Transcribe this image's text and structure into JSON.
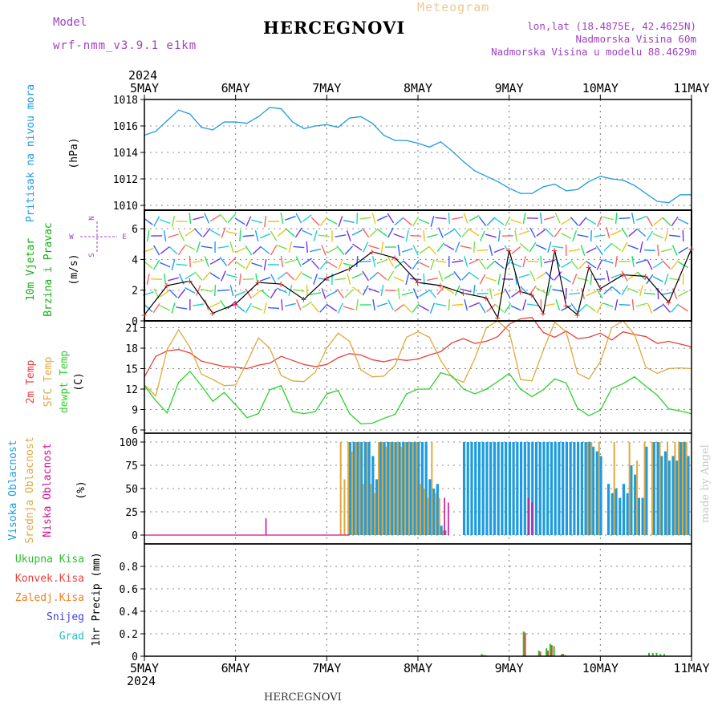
{
  "header": {
    "model_label": "Model",
    "model_name": "wrf-nmm_v3.9.1 e1km",
    "title": "HERCEGNOVI",
    "meteogram_label": "Meteogram",
    "lonlat": "lon,lat (18.4875E, 42.4625N)",
    "altitude": "Nadmorska Visina 60m",
    "model_altitude": "Nadmorska Visina u modelu 88.4629m"
  },
  "footer": {
    "station": "HERCEGNOVI",
    "credit": "made by Angel"
  },
  "colors": {
    "pressure": "#1e9be0",
    "temp2m": "#e8403c",
    "sfc": "#e0a83c",
    "dewpt": "#2bd12b",
    "high_cloud": "#1e9be0",
    "mid_cloud": "#e0a83c",
    "low_cloud": "#d01090",
    "total_precip": "#2bbf2b",
    "conv_precip": "#e8403c",
    "frz_precip": "#f08020",
    "snow": "#4040e0",
    "hail": "#20c0c0",
    "wind_label": "#10b010",
    "compass": "#a040c0"
  },
  "chart_data": [
    {
      "type": "line",
      "panel": "pressure",
      "ylabel": [
        "Pritisak na nivou mora",
        "(hPa)"
      ],
      "ylim": [
        1010,
        1018
      ],
      "yticks": [
        "1010",
        "1012",
        "1014",
        "1016",
        "1018"
      ],
      "x_top_year": "2024",
      "x_top_labels": [
        "5MAY",
        "6MAY",
        "7MAY",
        "8MAY",
        "9MAY",
        "10MAY",
        "11MAY"
      ],
      "grid": true,
      "series": [
        {
          "x_hours": [
            0,
            3,
            6,
            9,
            12,
            15,
            18,
            21,
            24,
            27,
            30,
            33,
            36,
            39,
            42,
            45,
            48,
            51,
            54,
            57,
            60,
            63,
            66,
            69,
            72,
            75,
            78,
            81,
            84,
            87,
            90,
            93,
            96,
            99,
            102,
            105,
            108,
            111,
            114,
            117,
            120,
            123,
            126,
            129,
            132,
            135,
            138,
            141,
            144
          ],
          "values": [
            1015.3,
            1015.6,
            1016.4,
            1017.2,
            1016.9,
            1015.9,
            1015.7,
            1016.3,
            1016.3,
            1016.2,
            1016.7,
            1017.4,
            1017.3,
            1016.3,
            1015.8,
            1016.0,
            1016.1,
            1015.9,
            1016.6,
            1016.7,
            1016.2,
            1015.3,
            1014.9,
            1014.9,
            1014.7,
            1014.4,
            1014.8,
            1014.1,
            1013.3,
            1012.6,
            1012.2,
            1011.8,
            1011.3,
            1010.9,
            1010.9,
            1011.4,
            1011.6,
            1011.1,
            1011.2,
            1011.8,
            1012.2,
            1012.0,
            1011.9,
            1011.5,
            1010.9,
            1010.3,
            1010.2,
            1010.8,
            1010.8
          ]
        }
      ]
    },
    {
      "type": "line",
      "panel": "wind",
      "ylabel": [
        "10m Vjetar",
        "Brzina i Pravac",
        "(m/s)"
      ],
      "compass_labels": {
        "n": "N",
        "s": "S",
        "w": "W",
        "e": "E"
      },
      "ylim": [
        0,
        7
      ],
      "yticks": [
        "0",
        "2",
        "4",
        "6"
      ],
      "grid": true,
      "series": [
        {
          "name": "wind speed",
          "x_hours": [
            0,
            6,
            12,
            18,
            24,
            30,
            36,
            42,
            48,
            54,
            60,
            66,
            72,
            78,
            84,
            90,
            93,
            96,
            99,
            102,
            105,
            108,
            111,
            114,
            117,
            120,
            126,
            132,
            138,
            144
          ],
          "values": [
            0.4,
            2.3,
            2.6,
            0.5,
            1.1,
            2.5,
            2.4,
            1.4,
            2.8,
            3.4,
            4.5,
            4.1,
            2.5,
            2.3,
            1.8,
            1.5,
            0.2,
            4.6,
            1.9,
            1.7,
            0.5,
            4.6,
            1.0,
            0.4,
            3.5,
            2.1,
            3.0,
            2.9,
            1.2,
            4.7
          ]
        }
      ]
    },
    {
      "type": "line",
      "panel": "temperature",
      "ylabel": [
        "2m Temp",
        "SFC Temp",
        "dewpt Temp",
        "(C)"
      ],
      "ylim": [
        6,
        22
      ],
      "yticks": [
        "6",
        "9",
        "12",
        "15",
        "18",
        "21"
      ],
      "grid": true,
      "series": [
        {
          "name": "2m Temp",
          "x_hours": [
            0,
            3,
            6,
            9,
            12,
            15,
            18,
            21,
            24,
            27,
            30,
            33,
            36,
            39,
            42,
            45,
            48,
            51,
            54,
            57,
            60,
            63,
            66,
            69,
            72,
            75,
            78,
            81,
            84,
            87,
            90,
            93,
            96,
            99,
            102,
            105,
            108,
            111,
            114,
            117,
            120,
            123,
            126,
            129,
            132,
            135,
            138,
            141,
            144
          ],
          "values": [
            13.8,
            16.8,
            17.6,
            17.8,
            17.3,
            16.1,
            15.7,
            15.3,
            15.2,
            15.0,
            15.5,
            15.8,
            16.8,
            16.2,
            15.6,
            15.3,
            15.6,
            16.6,
            17.2,
            17.0,
            16.3,
            16.0,
            16.4,
            16.2,
            16.4,
            17.0,
            17.5,
            18.8,
            19.4,
            18.7,
            19.0,
            19.7,
            21.5,
            22.3,
            22.5,
            20.3,
            19.6,
            20.5,
            19.4,
            19.6,
            20.2,
            19.2,
            20.4,
            20.0,
            19.7,
            18.7,
            19.0,
            18.6,
            18.2
          ]
        },
        {
          "name": "SFC Temp",
          "x_hours": [
            0,
            3,
            6,
            9,
            12,
            15,
            18,
            21,
            24,
            27,
            30,
            33,
            36,
            39,
            42,
            45,
            48,
            51,
            54,
            57,
            60,
            63,
            66,
            69,
            72,
            75,
            78,
            81,
            84,
            87,
            90,
            93,
            96,
            99,
            102,
            105,
            108,
            111,
            114,
            117,
            120,
            123,
            126,
            129,
            132,
            135,
            138,
            141,
            144
          ],
          "values": [
            12.6,
            11.0,
            17.8,
            20.7,
            18.1,
            14.2,
            13.4,
            12.5,
            12.6,
            15.9,
            19.5,
            18.0,
            14.0,
            13.2,
            13.1,
            14.5,
            18.0,
            20.2,
            19.0,
            14.8,
            13.8,
            13.9,
            15.5,
            19.6,
            20.4,
            19.6,
            16.2,
            13.7,
            13.0,
            16.5,
            21.0,
            22.0,
            20.5,
            13.4,
            13.2,
            17.7,
            21.8,
            20.4,
            14.3,
            13.5,
            16.0,
            21.0,
            22.0,
            20.0,
            15.2,
            14.3,
            15.0,
            15.1,
            15.0
          ]
        },
        {
          "name": "dewpt Temp",
          "x_hours": [
            0,
            3,
            6,
            9,
            12,
            15,
            18,
            21,
            24,
            27,
            30,
            33,
            36,
            39,
            42,
            45,
            48,
            51,
            54,
            57,
            60,
            63,
            66,
            69,
            72,
            75,
            78,
            81,
            84,
            87,
            90,
            93,
            96,
            99,
            102,
            105,
            108,
            111,
            114,
            117,
            120,
            123,
            126,
            129,
            132,
            135,
            138,
            141,
            144
          ],
          "values": [
            12.5,
            10.3,
            8.5,
            13.0,
            14.6,
            12.5,
            10.2,
            11.5,
            9.7,
            7.8,
            8.4,
            11.9,
            12.5,
            8.7,
            8.4,
            8.7,
            11.3,
            11.8,
            8.4,
            6.9,
            7.0,
            7.7,
            8.3,
            11.3,
            12.0,
            12.0,
            14.4,
            13.9,
            12.0,
            11.3,
            12.0,
            13.1,
            14.3,
            12.0,
            10.9,
            11.9,
            13.5,
            12.9,
            9.2,
            8.1,
            8.9,
            12.1,
            12.8,
            13.8,
            12.4,
            11.1,
            9.1,
            8.8,
            8.4
          ]
        }
      ]
    },
    {
      "type": "bar",
      "panel": "cloud",
      "ylabel": [
        "Visoka Oblacnost",
        "Srednja Oblacnost",
        "Niska Oblacnost",
        "(%)"
      ],
      "ylim": [
        0,
        100
      ],
      "yticks": [
        "0",
        "25",
        "50",
        "75",
        "100"
      ],
      "grid": true,
      "series": [
        {
          "name": "Visoka Oblacnost",
          "x_hours": [
            51,
            52,
            53,
            54,
            55,
            56,
            57,
            58,
            59,
            60,
            61,
            62,
            63,
            64,
            65,
            66,
            67,
            68,
            69,
            70,
            71,
            72,
            73,
            74,
            75,
            76,
            77,
            78,
            79,
            80,
            84,
            85,
            86,
            87,
            88,
            89,
            90,
            91,
            92,
            93,
            94,
            95,
            96,
            97,
            98,
            99,
            100,
            101,
            102,
            103,
            104,
            105,
            106,
            107,
            108,
            109,
            110,
            111,
            112,
            113,
            114,
            115,
            116,
            117,
            118,
            119,
            120,
            121,
            122,
            123,
            124,
            125,
            126,
            127,
            128,
            129,
            130,
            131,
            132,
            133,
            134,
            135,
            136,
            137,
            138,
            139,
            140,
            141,
            142,
            143
          ],
          "values": [
            0,
            0,
            0,
            100,
            100,
            100,
            100,
            100,
            100,
            85,
            60,
            100,
            100,
            100,
            100,
            100,
            100,
            100,
            100,
            100,
            100,
            100,
            100,
            100,
            60,
            50,
            55,
            10,
            5,
            0,
            100,
            100,
            100,
            100,
            100,
            100,
            100,
            100,
            100,
            100,
            100,
            100,
            100,
            100,
            100,
            100,
            100,
            100,
            100,
            100,
            100,
            100,
            100,
            100,
            100,
            100,
            100,
            100,
            100,
            100,
            100,
            100,
            100,
            100,
            95,
            90,
            85,
            0,
            55,
            45,
            50,
            40,
            55,
            45,
            75,
            65,
            40,
            40,
            95,
            0,
            100,
            100,
            85,
            90,
            80,
            85,
            80,
            100,
            100,
            85
          ]
        },
        {
          "name": "Srednja Oblacnost",
          "x_hours": [
            52,
            53,
            54,
            55,
            56,
            57,
            58,
            59,
            60,
            61,
            62,
            63,
            64,
            65,
            66,
            67,
            68,
            69,
            70,
            71,
            72,
            73,
            74,
            75,
            76,
            77,
            78,
            79,
            117,
            118,
            120,
            124,
            128,
            130,
            132,
            134,
            136,
            138,
            140,
            141,
            142,
            143
          ],
          "values": [
            100,
            60,
            100,
            90,
            100,
            100,
            55,
            100,
            55,
            45,
            100,
            100,
            95,
            100,
            100,
            100,
            95,
            100,
            100,
            100,
            100,
            55,
            50,
            40,
            100,
            45,
            40,
            5,
            100,
            100,
            100,
            100,
            100,
            80,
            100,
            100,
            100,
            100,
            100,
            100,
            100,
            100
          ]
        },
        {
          "name": "Niska Oblacnost",
          "x_hours": [
            32,
            79,
            80,
            101,
            102
          ],
          "values": [
            18,
            40,
            35,
            40,
            35
          ]
        }
      ]
    },
    {
      "type": "bar",
      "panel": "precip",
      "ylabel": [
        "1hr Precip (mm)"
      ],
      "ylim": [
        0,
        1.0
      ],
      "yticks": [
        "0",
        "0.2",
        "0.4",
        "0.6",
        "0.8"
      ],
      "x_labels": [
        "5MAY",
        "6MAY",
        "7MAY",
        "8MAY",
        "9MAY",
        "10MAY",
        "11MAY"
      ],
      "x_year": "2024",
      "grid": true,
      "legend": [
        "Ukupna Kisa",
        "Konvek.Kisa",
        "Zaledj.Kisa",
        "Snijeg",
        "Grad"
      ],
      "series": [
        {
          "name": "Ukupna Kisa",
          "x_hours": [
            89,
            90,
            100,
            104,
            106,
            107,
            108,
            110,
            111,
            133,
            134,
            135,
            136,
            137
          ],
          "values": [
            0.02,
            0.01,
            0.22,
            0.05,
            0.07,
            0.11,
            0.09,
            0.02,
            0.01,
            0.03,
            0.03,
            0.03,
            0.02,
            0.02
          ]
        },
        {
          "name": "Konvek.Kisa",
          "x_hours": [
            89,
            100,
            104,
            106,
            107,
            110
          ],
          "values": [
            0.01,
            0.21,
            0.04,
            0.05,
            0.1,
            0.02
          ]
        }
      ]
    }
  ]
}
